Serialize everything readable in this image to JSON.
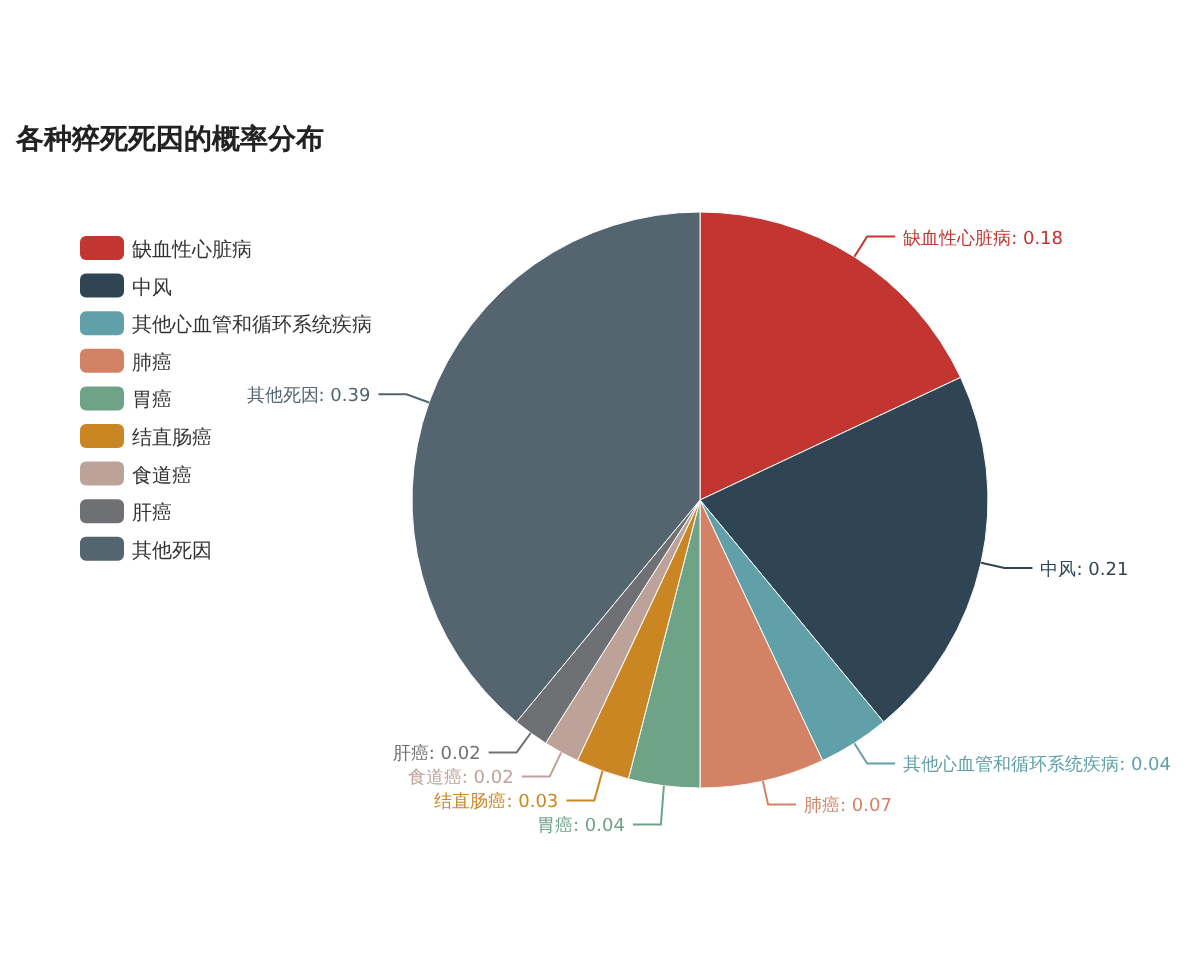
{
  "chart_data": {
    "type": "pie",
    "title": "各种猝死死因的概率分布",
    "categories": [
      "缺血性心脏病",
      "中风",
      "其他心血管和循环系统疾病",
      "肺癌",
      "胃癌",
      "结直肠癌",
      "食道癌",
      "肝癌",
      "其他死因"
    ],
    "values": [
      0.18,
      0.21,
      0.04,
      0.07,
      0.04,
      0.03,
      0.02,
      0.02,
      0.39
    ],
    "colors": [
      "#c23531",
      "#2f4554",
      "#61a0a8",
      "#d48265",
      "#6ea387",
      "#ca8622",
      "#bda29a",
      "#6e7074",
      "#546570"
    ],
    "value_labels": [
      ": 0.18",
      ": 0.21",
      ": 0.04",
      ": 0.07",
      ": 0.04",
      ": 0.03",
      ": 0.02",
      ": 0.02",
      ": 0.39"
    ],
    "legend": "left"
  }
}
